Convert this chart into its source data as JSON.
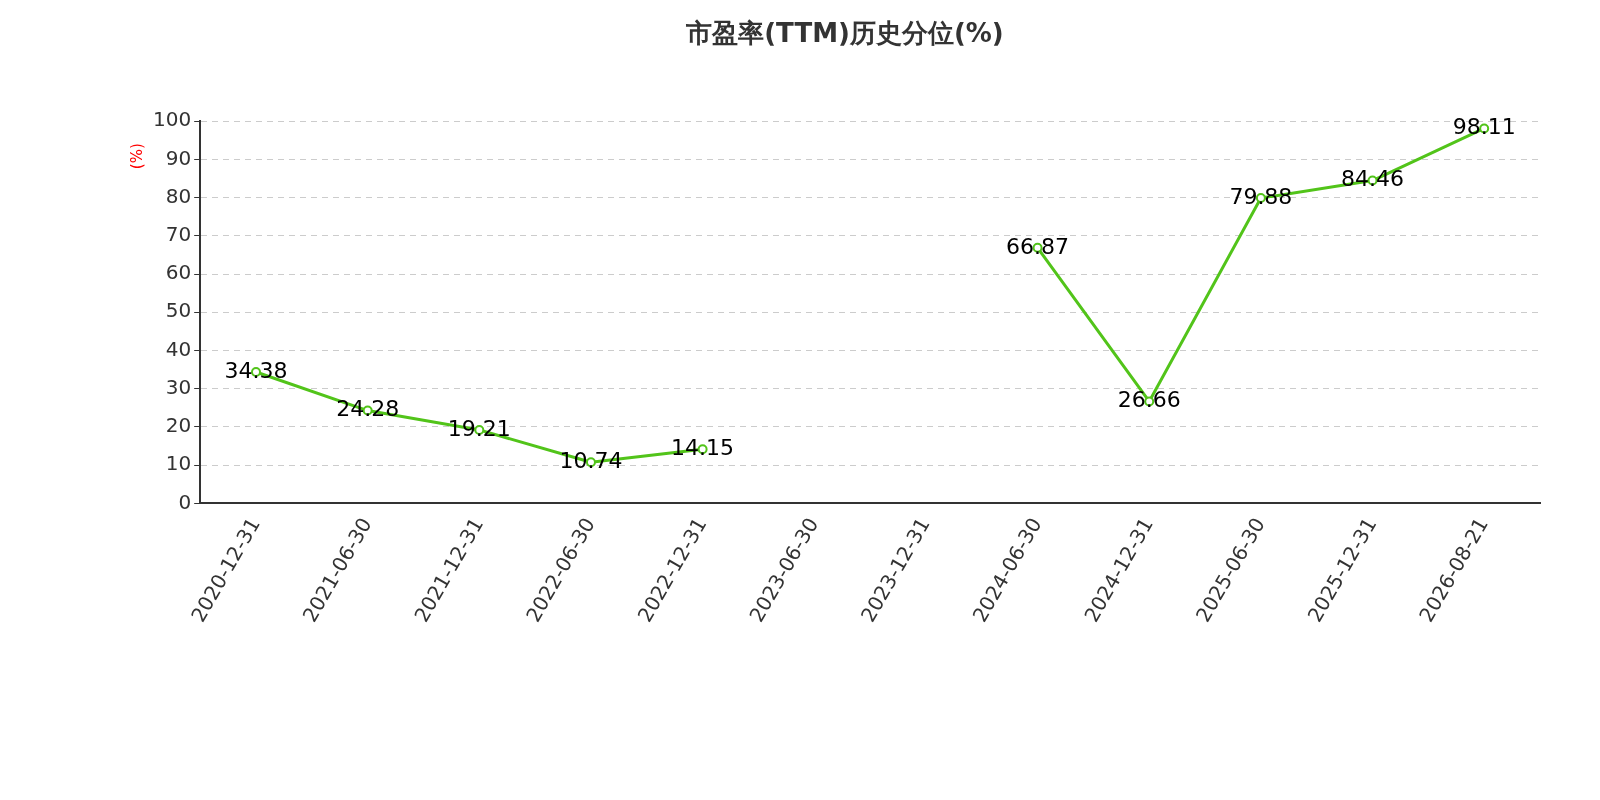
{
  "chart_data": {
    "type": "line",
    "title": "市盈率(TTM)历史分位(%)",
    "ylabel": "(%)",
    "categories": [
      "2020-12-31",
      "2021-06-30",
      "2021-12-31",
      "2022-06-30",
      "2022-12-31",
      "2023-06-30",
      "2023-12-31",
      "2024-06-30",
      "2024-12-31",
      "2025-06-30",
      "2025-12-31",
      "2026-08-21"
    ],
    "series": [
      {
        "color": "#52c41a",
        "values": [
          34.38,
          24.28,
          19.21,
          10.74,
          14.15,
          null,
          null,
          66.87,
          26.66,
          79.88,
          84.46,
          98.11
        ]
      }
    ],
    "ylim": [
      0,
      100
    ],
    "yticks": [
      0,
      10,
      20,
      30,
      40,
      50,
      60,
      70,
      80,
      90,
      100
    ],
    "grid": "y",
    "legend": false,
    "marker": "circle",
    "line_style": "solid",
    "data_labels": true
  }
}
